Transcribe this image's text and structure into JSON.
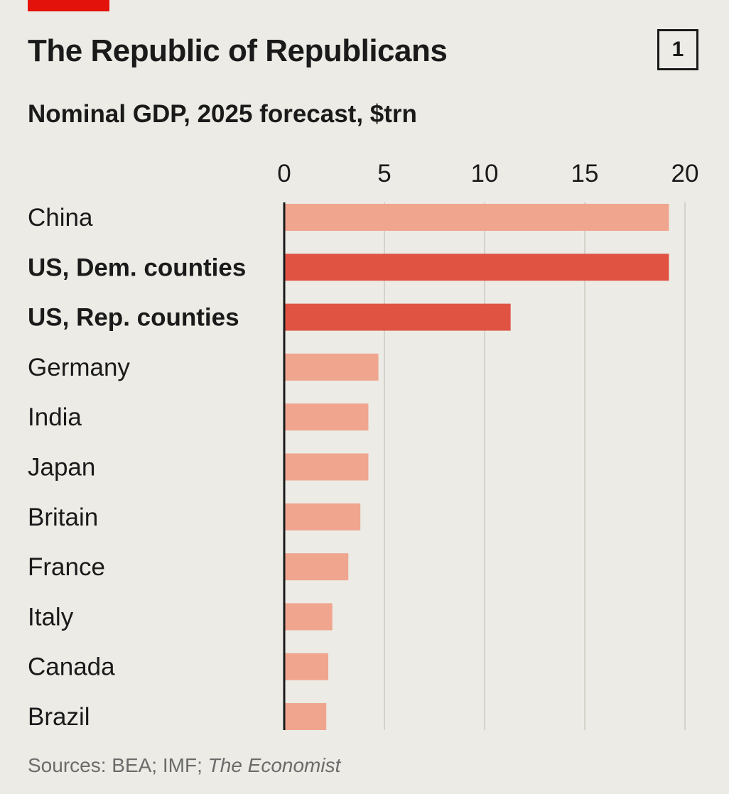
{
  "header": {
    "title": "The Republic of Republicans",
    "chart_number": "1",
    "subtitle": "Nominal GDP, 2025 forecast, $trn"
  },
  "footer": {
    "source_prefix": "Sources: BEA; IMF; ",
    "source_italic": "The Economist"
  },
  "colors": {
    "background": "#ecebe5",
    "brand_red": "#e3120b",
    "bar_highlight": "#e05343",
    "bar_default": "#f0a58f",
    "gridline": "#d4d2ca",
    "axis": "#1a1a1a"
  },
  "chart_data": {
    "type": "bar",
    "orientation": "horizontal",
    "title": "The Republic of Republicans",
    "subtitle": "Nominal GDP, 2025 forecast, $trn",
    "xlabel": "",
    "ylabel": "",
    "xlim": [
      0,
      20
    ],
    "ticks": [
      0,
      5,
      10,
      15,
      20
    ],
    "grid": true,
    "categories": [
      "China",
      "US, Dem. counties",
      "US, Rep. counties",
      "Germany",
      "India",
      "Japan",
      "Britain",
      "France",
      "Italy",
      "Canada",
      "Brazil"
    ],
    "values": [
      19.2,
      19.2,
      11.3,
      4.7,
      4.2,
      4.2,
      3.8,
      3.2,
      2.4,
      2.2,
      2.1
    ],
    "highlighted": [
      "US, Dem. counties",
      "US, Rep. counties"
    ]
  }
}
